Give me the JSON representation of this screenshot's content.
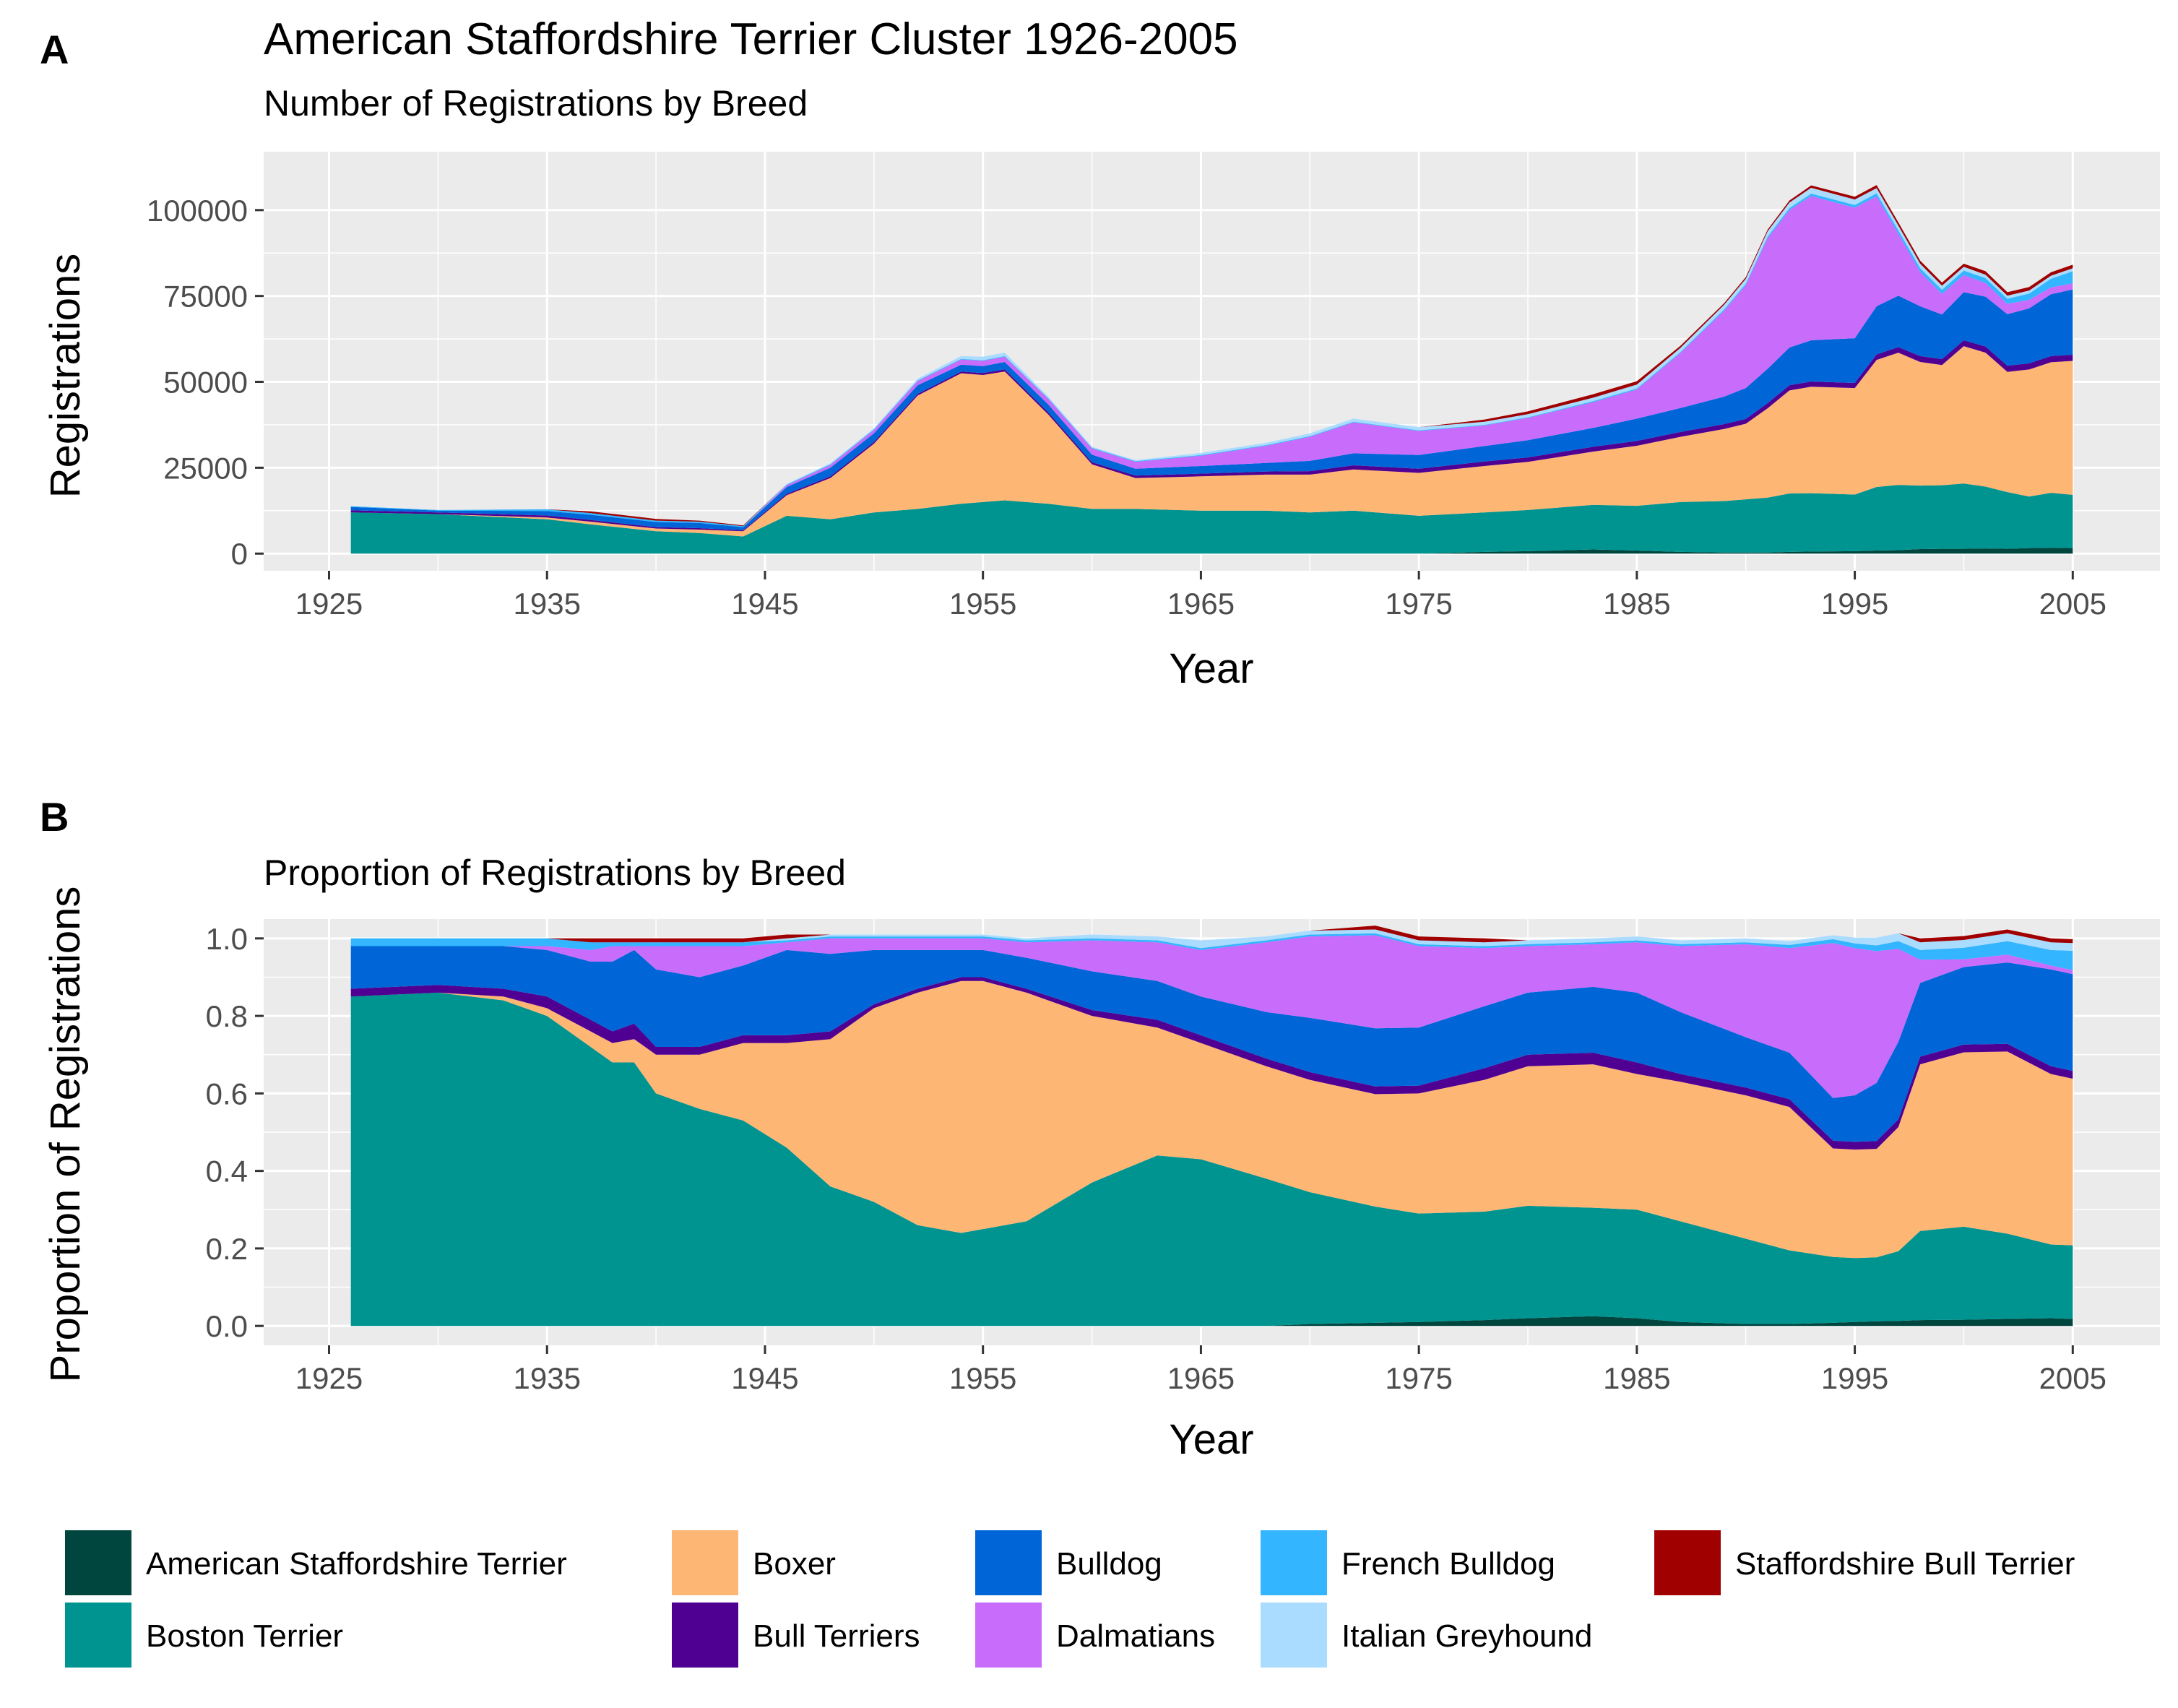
{
  "chart_data": [
    {
      "panel": "A",
      "type": "area",
      "title": "American Staffordshire Terrier Cluster 1926-2005",
      "subtitle": "Number of Registrations by Breed",
      "xlabel": "Year",
      "ylabel": "Registrations",
      "xlim": [
        1922,
        2009
      ],
      "ylim": [
        -5000,
        117000
      ],
      "x_ticks": [
        1925,
        1935,
        1945,
        1955,
        1965,
        1975,
        1985,
        1995,
        2005
      ],
      "y_ticks": [
        0,
        25000,
        50000,
        75000,
        100000
      ],
      "y_tick_labels": [
        "0",
        "25000",
        "50000",
        "75000",
        "100000"
      ],
      "grid": true,
      "x": [
        1926,
        1930,
        1935,
        1937,
        1940,
        1942,
        1944,
        1946,
        1948,
        1950,
        1952,
        1954,
        1955,
        1956,
        1958,
        1960,
        1962,
        1965,
        1968,
        1970,
        1972,
        1975,
        1978,
        1980,
        1983,
        1985,
        1987,
        1989,
        1990,
        1991,
        1992,
        1993,
        1995,
        1996,
        1997,
        1998,
        1999,
        2000,
        2001,
        2002,
        2003,
        2004,
        2005
      ],
      "series": [
        {
          "name": "American Staffordshire Terrier",
          "values": [
            0,
            0,
            0,
            0,
            0,
            0,
            0,
            0,
            0,
            0,
            0,
            0,
            0,
            0,
            0,
            0,
            0,
            0,
            0,
            0,
            0,
            0,
            500,
            700,
            1200,
            900,
            500,
            300,
            300,
            300,
            500,
            600,
            700,
            900,
            1000,
            1300,
            1400,
            1400,
            1500,
            1400,
            1600,
            1700,
            1600
          ]
        },
        {
          "name": "Boston Terrier",
          "values": [
            12000,
            11500,
            10000,
            8500,
            6500,
            6000,
            5000,
            11000,
            10000,
            12000,
            13000,
            14500,
            15000,
            15500,
            14500,
            13000,
            13000,
            12500,
            12500,
            12000,
            12500,
            11000,
            11500,
            12000,
            13000,
            13000,
            14500,
            15000,
            15500,
            16000,
            17000,
            17000,
            16500,
            18500,
            19000,
            18500,
            18500,
            19000,
            18000,
            16500,
            15000,
            16000,
            15500
          ]
        },
        {
          "name": "Boxer",
          "values": [
            0,
            0,
            500,
            800,
            800,
            1000,
            1500,
            6000,
            12000,
            20000,
            33000,
            38000,
            37000,
            37500,
            26000,
            13000,
            9000,
            10000,
            10500,
            11000,
            12000,
            12500,
            13500,
            14000,
            15500,
            17500,
            19000,
            21000,
            22000,
            26000,
            30000,
            31000,
            31000,
            37000,
            38500,
            36000,
            35000,
            40000,
            39000,
            35000,
            37000,
            38000,
            39000
          ]
        },
        {
          "name": "Bull Terriers",
          "values": [
            600,
            500,
            600,
            500,
            400,
            400,
            300,
            400,
            500,
            500,
            500,
            500,
            600,
            600,
            600,
            600,
            700,
            800,
            900,
            1000,
            1200,
            1200,
            1300,
            1300,
            1400,
            1400,
            1400,
            1400,
            1400,
            1500,
            1500,
            1500,
            1500,
            1600,
            1600,
            1700,
            1700,
            1700,
            1800,
            1800,
            1800,
            1800,
            1800
          ]
        },
        {
          "name": "Bulldog",
          "values": [
            1000,
            500,
            1300,
            1500,
            1500,
            1500,
            900,
            2000,
            2500,
            2500,
            2500,
            2000,
            2000,
            2200,
            2300,
            2200,
            2000,
            2200,
            2500,
            3000,
            3500,
            4000,
            4500,
            5000,
            5500,
            6500,
            7000,
            8000,
            9000,
            10000,
            11000,
            12000,
            13000,
            14000,
            15000,
            14500,
            13000,
            14000,
            14500,
            15000,
            16000,
            18000,
            19000
          ]
        },
        {
          "name": "Dalmatians",
          "values": [
            0,
            0,
            0,
            0,
            0,
            0,
            0,
            500,
            800,
            1000,
            1200,
            1500,
            1500,
            1500,
            1600,
            1800,
            2000,
            3000,
            5000,
            7000,
            9000,
            7000,
            6000,
            6500,
            7500,
            8500,
            16000,
            25000,
            30000,
            38000,
            40000,
            42000,
            38000,
            32000,
            18000,
            10000,
            6000,
            5000,
            4000,
            3000,
            2500,
            2000,
            1800
          ]
        },
        {
          "name": "French Bulldog",
          "values": [
            200,
            200,
            500,
            500,
            400,
            400,
            300,
            200,
            200,
            200,
            200,
            200,
            200,
            200,
            200,
            200,
            200,
            200,
            200,
            200,
            200,
            200,
            200,
            200,
            300,
            300,
            300,
            400,
            400,
            500,
            600,
            700,
            800,
            900,
            1000,
            1100,
            1200,
            1300,
            1400,
            1500,
            1800,
            2500,
            3500
          ]
        },
        {
          "name": "Italian Greyhound",
          "values": [
            0,
            0,
            0,
            0,
            0,
            0,
            0,
            200,
            300,
            300,
            500,
            800,
            1000,
            1000,
            500,
            300,
            300,
            600,
            700,
            800,
            900,
            900,
            900,
            900,
            1000,
            1100,
            1200,
            1300,
            1400,
            1500,
            1600,
            1700,
            1600,
            1500,
            1400,
            1300,
            1200,
            1100,
            1000,
            900,
            900,
            900,
            900
          ]
        },
        {
          "name": "Staffordshire Bull Terrier",
          "values": [
            0,
            0,
            0,
            500,
            500,
            300,
            200,
            0,
            0,
            0,
            0,
            0,
            0,
            0,
            0,
            0,
            0,
            0,
            0,
            0,
            0,
            0,
            600,
            800,
            1000,
            1000,
            600,
            500,
            500,
            500,
            600,
            700,
            800,
            900,
            900,
            900,
            900,
            900,
            1000,
            1000,
            1000,
            1000,
            1000
          ]
        }
      ]
    },
    {
      "panel": "B",
      "type": "area",
      "title": "",
      "subtitle": "Proportion of Registrations by Breed",
      "xlabel": "Year",
      "ylabel": "Proportion of Registrations",
      "xlim": [
        1922,
        2009
      ],
      "ylim": [
        -0.05,
        1.05
      ],
      "x_ticks": [
        1925,
        1935,
        1945,
        1955,
        1965,
        1975,
        1985,
        1995,
        2005
      ],
      "y_ticks": [
        0.0,
        0.2,
        0.4,
        0.6,
        0.8,
        1.0
      ],
      "y_tick_labels": [
        "0.0",
        "0.2",
        "0.4",
        "0.6",
        "0.8",
        "1.0"
      ],
      "grid": true,
      "x": [
        1926,
        1930,
        1933,
        1935,
        1937,
        1938,
        1939,
        1940,
        1942,
        1944,
        1946,
        1948,
        1950,
        1952,
        1954,
        1955,
        1957,
        1960,
        1963,
        1965,
        1968,
        1970,
        1973,
        1975,
        1978,
        1980,
        1983,
        1985,
        1987,
        1990,
        1992,
        1994,
        1995,
        1996,
        1997,
        1998,
        2000,
        2002,
        2004,
        2005
      ],
      "series": [
        {
          "name": "American Staffordshire Terrier",
          "values": [
            0,
            0,
            0,
            0,
            0,
            0,
            0,
            0,
            0,
            0,
            0,
            0,
            0,
            0,
            0,
            0,
            0,
            0,
            0,
            0,
            0,
            0.005,
            0.008,
            0.01,
            0.015,
            0.02,
            0.025,
            0.02,
            0.01,
            0.005,
            0.005,
            0.008,
            0.01,
            0.012,
            0.013,
            0.015,
            0.016,
            0.018,
            0.02,
            0.018
          ]
        },
        {
          "name": "Boston Terrier",
          "values": [
            0.85,
            0.86,
            0.84,
            0.8,
            0.72,
            0.68,
            0.68,
            0.6,
            0.56,
            0.53,
            0.46,
            0.36,
            0.32,
            0.26,
            0.24,
            0.25,
            0.27,
            0.37,
            0.44,
            0.43,
            0.38,
            0.34,
            0.3,
            0.28,
            0.28,
            0.29,
            0.28,
            0.28,
            0.26,
            0.22,
            0.19,
            0.17,
            0.165,
            0.165,
            0.18,
            0.23,
            0.24,
            0.22,
            0.19,
            0.19
          ]
        },
        {
          "name": "Boxer",
          "values": [
            0,
            0,
            0.01,
            0.02,
            0.04,
            0.05,
            0.06,
            0.1,
            0.14,
            0.2,
            0.27,
            0.38,
            0.5,
            0.6,
            0.65,
            0.64,
            0.59,
            0.43,
            0.33,
            0.3,
            0.29,
            0.29,
            0.29,
            0.31,
            0.34,
            0.36,
            0.37,
            0.35,
            0.36,
            0.37,
            0.37,
            0.28,
            0.28,
            0.28,
            0.32,
            0.43,
            0.45,
            0.47,
            0.44,
            0.43
          ]
        },
        {
          "name": "Bull Terriers",
          "values": [
            0.02,
            0.02,
            0.02,
            0.03,
            0.03,
            0.03,
            0.04,
            0.02,
            0.02,
            0.02,
            0.02,
            0.02,
            0.01,
            0.01,
            0.01,
            0.01,
            0.01,
            0.015,
            0.02,
            0.02,
            0.02,
            0.02,
            0.02,
            0.02,
            0.03,
            0.03,
            0.03,
            0.03,
            0.02,
            0.02,
            0.02,
            0.02,
            0.02,
            0.02,
            0.02,
            0.02,
            0.02,
            0.02,
            0.02,
            0.02
          ]
        },
        {
          "name": "Bulldog",
          "values": [
            0.11,
            0.1,
            0.11,
            0.12,
            0.15,
            0.18,
            0.19,
            0.2,
            0.18,
            0.18,
            0.22,
            0.2,
            0.14,
            0.1,
            0.07,
            0.07,
            0.08,
            0.1,
            0.1,
            0.1,
            0.12,
            0.14,
            0.15,
            0.15,
            0.16,
            0.16,
            0.17,
            0.18,
            0.16,
            0.13,
            0.12,
            0.11,
            0.12,
            0.15,
            0.2,
            0.19,
            0.2,
            0.21,
            0.25,
            0.25
          ]
        },
        {
          "name": "Dalmatians",
          "values": [
            0,
            0,
            0,
            0.01,
            0.03,
            0.04,
            0.01,
            0.06,
            0.08,
            0.05,
            0.02,
            0.04,
            0.03,
            0.03,
            0.03,
            0.03,
            0.04,
            0.08,
            0.1,
            0.12,
            0.18,
            0.21,
            0.24,
            0.21,
            0.15,
            0.12,
            0.11,
            0.13,
            0.17,
            0.24,
            0.27,
            0.4,
            0.38,
            0.34,
            0.24,
            0.06,
            0.02,
            0.02,
            0.01,
            0.01
          ]
        },
        {
          "name": "French Bulldog",
          "values": [
            0.02,
            0.02,
            0.02,
            0.02,
            0.02,
            0.01,
            0.01,
            0.01,
            0.01,
            0.01,
            0.005,
            0.005,
            0.005,
            0.005,
            0.005,
            0.005,
            0.005,
            0.005,
            0.005,
            0.005,
            0.005,
            0.005,
            0.005,
            0.005,
            0.005,
            0.005,
            0.005,
            0.005,
            0.005,
            0.005,
            0.008,
            0.01,
            0.012,
            0.015,
            0.02,
            0.025,
            0.03,
            0.035,
            0.04,
            0.05
          ]
        },
        {
          "name": "Italian Greyhound",
          "values": [
            0,
            0,
            0,
            0,
            0,
            0,
            0,
            0,
            0,
            0,
            0.005,
            0.005,
            0.005,
            0.005,
            0.005,
            0.005,
            0.005,
            0.01,
            0.01,
            0.02,
            0.01,
            0.01,
            0.01,
            0.01,
            0.01,
            0.01,
            0.01,
            0.01,
            0.01,
            0.01,
            0.01,
            0.01,
            0.015,
            0.02,
            0.02,
            0.02,
            0.02,
            0.02,
            0.02,
            0.02
          ]
        },
        {
          "name": "Staffordshire Bull Terrier",
          "values": [
            0,
            0,
            0,
            0,
            0.01,
            0.01,
            0.01,
            0.01,
            0.01,
            0.01,
            0.01,
            0,
            0,
            0,
            0,
            0,
            0,
            0,
            0,
            0,
            0,
            0,
            0.01,
            0.01,
            0.01,
            0,
            0,
            0,
            0,
            0,
            0,
            0,
            0,
            0,
            0,
            0.01,
            0.01,
            0.01,
            0.01,
            0.01
          ]
        }
      ]
    }
  ],
  "legend": {
    "position": "bottom",
    "items": [
      {
        "label": "American Staffordshire Terrier",
        "color": "#00463f"
      },
      {
        "label": "Boxer",
        "color": "#fdb674"
      },
      {
        "label": "Bulldog",
        "color": "#0066d8"
      },
      {
        "label": "French Bulldog",
        "color": "#33b5ff"
      },
      {
        "label": "Staffordshire Bull Terrier",
        "color": "#a00000"
      },
      {
        "label": "Boston Terrier",
        "color": "#009490"
      },
      {
        "label": "Bull Terriers",
        "color": "#4f0092"
      },
      {
        "label": "Dalmatians",
        "color": "#c86cfb"
      },
      {
        "label": "Italian Greyhound",
        "color": "#a9dcff"
      }
    ]
  },
  "colors": {
    "American Staffordshire Terrier": "#00463f",
    "Boston Terrier": "#009490",
    "Boxer": "#fdb674",
    "Bull Terriers": "#4f0092",
    "Bulldog": "#0066d8",
    "Dalmatians": "#c86cfb",
    "French Bulldog": "#33b5ff",
    "Italian Greyhound": "#a9dcff",
    "Staffordshire Bull Terrier": "#a00000"
  }
}
